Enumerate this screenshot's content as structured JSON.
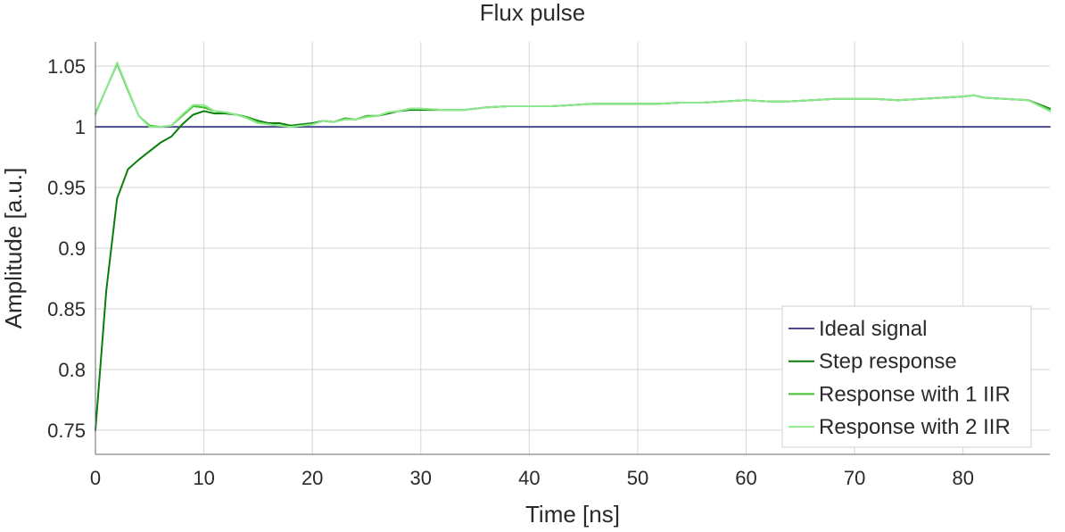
{
  "chart_data": {
    "type": "line",
    "title": "Flux pulse",
    "xlabel": "Time [ns]",
    "ylabel": "Amplitude [a.u.]",
    "xlim": [
      0,
      88
    ],
    "ylim": [
      0.73,
      1.07
    ],
    "xticks": [
      0,
      10,
      20,
      30,
      40,
      50,
      60,
      70,
      80
    ],
    "xtick_labels": [
      "0",
      "10",
      "20",
      "30",
      "40",
      "50",
      "60",
      "70",
      "80"
    ],
    "yticks": [
      0.75,
      0.8,
      0.85,
      0.9,
      0.95,
      1.0,
      1.05
    ],
    "ytick_labels": [
      "0.75",
      "0.8",
      "0.85",
      "0.9",
      "0.95",
      "1",
      "1.05"
    ],
    "grid": true,
    "legend_position": "bottom-right",
    "series": [
      {
        "name": "Ideal signal",
        "color": "#4b4b8f",
        "x": [
          0,
          88
        ],
        "y": [
          1.0,
          1.0
        ]
      },
      {
        "name": "Step response",
        "color": "#0a7d0a",
        "x": [
          0,
          1,
          2,
          3,
          4,
          5,
          6,
          7,
          8,
          9,
          10,
          11,
          12,
          13,
          14,
          15,
          16,
          17,
          18,
          19,
          20,
          21,
          22,
          23,
          24,
          25,
          26,
          27,
          28,
          29,
          30,
          32,
          34,
          36,
          38,
          40,
          42,
          44,
          46,
          48,
          50,
          52,
          54,
          56,
          58,
          60,
          62,
          64,
          66,
          68,
          70,
          72,
          74,
          76,
          78,
          80,
          81,
          82,
          84,
          86,
          88
        ],
        "y": [
          0.75,
          0.865,
          0.941,
          0.965,
          0.973,
          0.98,
          0.987,
          0.992,
          1.002,
          1.01,
          1.013,
          1.011,
          1.011,
          1.01,
          1.008,
          1.005,
          1.003,
          1.003,
          1.001,
          1.002,
          1.003,
          1.005,
          1.004,
          1.007,
          1.006,
          1.009,
          1.009,
          1.011,
          1.013,
          1.014,
          1.014,
          1.014,
          1.014,
          1.016,
          1.017,
          1.017,
          1.017,
          1.018,
          1.019,
          1.019,
          1.019,
          1.019,
          1.02,
          1.02,
          1.021,
          1.022,
          1.021,
          1.021,
          1.022,
          1.023,
          1.023,
          1.023,
          1.022,
          1.023,
          1.024,
          1.025,
          1.026,
          1.024,
          1.023,
          1.022,
          1.015
        ]
      },
      {
        "name": "Response with 1 IIR",
        "color": "#3fbf2a",
        "x": [
          0,
          2,
          3,
          4,
          5,
          6,
          7,
          8,
          9,
          10,
          11,
          12,
          13,
          14,
          15,
          16,
          17,
          18,
          19,
          20,
          21,
          22,
          23,
          24,
          25,
          26,
          27,
          28,
          29,
          30,
          32,
          34,
          36,
          38,
          40,
          42,
          44,
          46,
          48,
          50,
          52,
          54,
          56,
          58,
          60,
          62,
          64,
          66,
          68,
          70,
          72,
          74,
          76,
          78,
          80,
          81,
          82,
          84,
          86,
          88
        ],
        "y": [
          1.011,
          1.052,
          1.03,
          1.009,
          1.001,
          1.0,
          1.001,
          1.009,
          1.017,
          1.016,
          1.013,
          1.012,
          1.01,
          1.008,
          1.004,
          1.002,
          1.001,
          1.0,
          1.001,
          1.002,
          1.005,
          1.004,
          1.007,
          1.006,
          1.009,
          1.009,
          1.012,
          1.013,
          1.015,
          1.015,
          1.014,
          1.014,
          1.016,
          1.017,
          1.017,
          1.017,
          1.018,
          1.019,
          1.019,
          1.019,
          1.019,
          1.02,
          1.02,
          1.021,
          1.022,
          1.021,
          1.021,
          1.022,
          1.023,
          1.023,
          1.023,
          1.022,
          1.023,
          1.024,
          1.025,
          1.026,
          1.024,
          1.023,
          1.022,
          1.014
        ]
      },
      {
        "name": "Response with 2 IIR",
        "color": "#8fe88f",
        "x": [
          0,
          2,
          3,
          4,
          5,
          6,
          7,
          8,
          9,
          10,
          11,
          12,
          13,
          14,
          15,
          16,
          17,
          18,
          19,
          20,
          21,
          22,
          23,
          24,
          25,
          26,
          27,
          28,
          29,
          30,
          32,
          34,
          36,
          38,
          40,
          42,
          44,
          46,
          48,
          50,
          52,
          54,
          56,
          58,
          60,
          62,
          64,
          66,
          68,
          70,
          72,
          74,
          76,
          78,
          80,
          81,
          82,
          84,
          86,
          88
        ],
        "y": [
          1.01,
          1.053,
          1.031,
          1.009,
          1.0,
          1.0,
          1.001,
          1.01,
          1.018,
          1.018,
          1.013,
          1.012,
          1.01,
          1.007,
          1.003,
          1.002,
          1.001,
          1.0,
          1.001,
          1.002,
          1.005,
          1.004,
          1.006,
          1.006,
          1.008,
          1.009,
          1.012,
          1.013,
          1.015,
          1.015,
          1.014,
          1.014,
          1.016,
          1.017,
          1.017,
          1.017,
          1.018,
          1.019,
          1.019,
          1.019,
          1.019,
          1.02,
          1.02,
          1.021,
          1.022,
          1.021,
          1.021,
          1.022,
          1.023,
          1.023,
          1.023,
          1.022,
          1.023,
          1.024,
          1.025,
          1.026,
          1.024,
          1.023,
          1.022,
          1.013
        ]
      }
    ]
  }
}
